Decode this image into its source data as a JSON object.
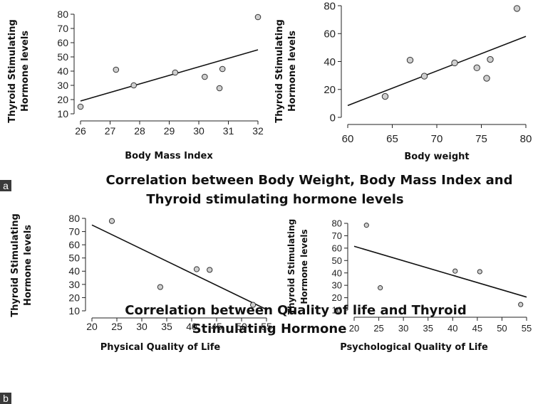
{
  "panel_a_tag": "a",
  "panel_b_tag": "b",
  "caption_a": [
    "Correlation between Body Weight, Body Mass Index and",
    "Thyroid stimulating hormone  levels"
  ],
  "caption_b": [
    "Correlation between Quality of life and Thyroid",
    "Stimulating Hormone"
  ],
  "colors": {
    "point_fill": "#cfcfcf",
    "point_stroke": "#333333",
    "line": "#111111",
    "tag_bg": "#3a3a3a"
  },
  "chart_data": [
    {
      "type": "scatter",
      "title": "",
      "xlabel": "Body Mass Index",
      "ylabel": [
        "Thyroid Stimulating",
        "Hormone levels"
      ],
      "xlim": [
        26,
        32
      ],
      "ylim": [
        10,
        80
      ],
      "xticks": [
        26,
        27,
        28,
        29,
        30,
        31,
        32
      ],
      "yticks": [
        10,
        20,
        30,
        40,
        50,
        60,
        70,
        80
      ],
      "grid": false,
      "points": [
        [
          26.0,
          15
        ],
        [
          27.2,
          41
        ],
        [
          27.8,
          30
        ],
        [
          29.2,
          39
        ],
        [
          30.2,
          36
        ],
        [
          30.7,
          28
        ],
        [
          30.8,
          41.5
        ],
        [
          32.0,
          78
        ]
      ],
      "trendline": [
        [
          26,
          19
        ],
        [
          32,
          55
        ]
      ]
    },
    {
      "type": "scatter",
      "title": "",
      "xlabel": "Body weight",
      "ylabel": [
        "Thyroid Stimulating",
        "Hormone levels"
      ],
      "xlim": [
        60,
        80
      ],
      "ylim": [
        0,
        80
      ],
      "xticks": [
        60,
        65,
        70,
        75,
        80
      ],
      "yticks": [
        0,
        20,
        40,
        60,
        80
      ],
      "grid": false,
      "points": [
        [
          64.2,
          15
        ],
        [
          67,
          41
        ],
        [
          68.6,
          29.5
        ],
        [
          72,
          39
        ],
        [
          74.5,
          35.5
        ],
        [
          75.6,
          28
        ],
        [
          76,
          41.5
        ],
        [
          79,
          78
        ]
      ],
      "trendline": [
        [
          60,
          8.5
        ],
        [
          80,
          58
        ]
      ]
    },
    {
      "type": "scatter",
      "title": "",
      "xlabel": "Physical Quality of Life",
      "ylabel": [
        "Thyroid Stimulating",
        "Hormone levels"
      ],
      "xlim": [
        20,
        55
      ],
      "ylim": [
        10,
        80
      ],
      "xticks": [
        20,
        25,
        30,
        35,
        40,
        45,
        50,
        55
      ],
      "yticks": [
        10,
        20,
        30,
        40,
        50,
        60,
        70,
        80
      ],
      "grid": false,
      "points": [
        [
          24,
          78
        ],
        [
          33.7,
          28
        ],
        [
          41,
          41.5
        ],
        [
          43.6,
          41
        ],
        [
          52.3,
          14.5
        ]
      ],
      "trendline": [
        [
          20,
          75
        ],
        [
          55,
          11
        ]
      ]
    },
    {
      "type": "scatter",
      "title": "",
      "xlabel": "Psychological Quality of Life",
      "ylabel": [
        "Thyroid Stimulating",
        "Hormone levels"
      ],
      "xlim": [
        20,
        55
      ],
      "ylim": [
        10,
        80
      ],
      "xticks": [
        20,
        25,
        30,
        35,
        40,
        45,
        50,
        55
      ],
      "yticks": [
        10,
        20,
        30,
        40,
        50,
        60,
        70,
        80
      ],
      "grid": false,
      "points": [
        [
          22.5,
          78.5
        ],
        [
          25.3,
          28
        ],
        [
          40.5,
          41.5
        ],
        [
          45.5,
          41
        ],
        [
          53.8,
          14.5
        ]
      ],
      "trendline": [
        [
          20,
          61.5
        ],
        [
          55,
          20.5
        ]
      ]
    }
  ]
}
